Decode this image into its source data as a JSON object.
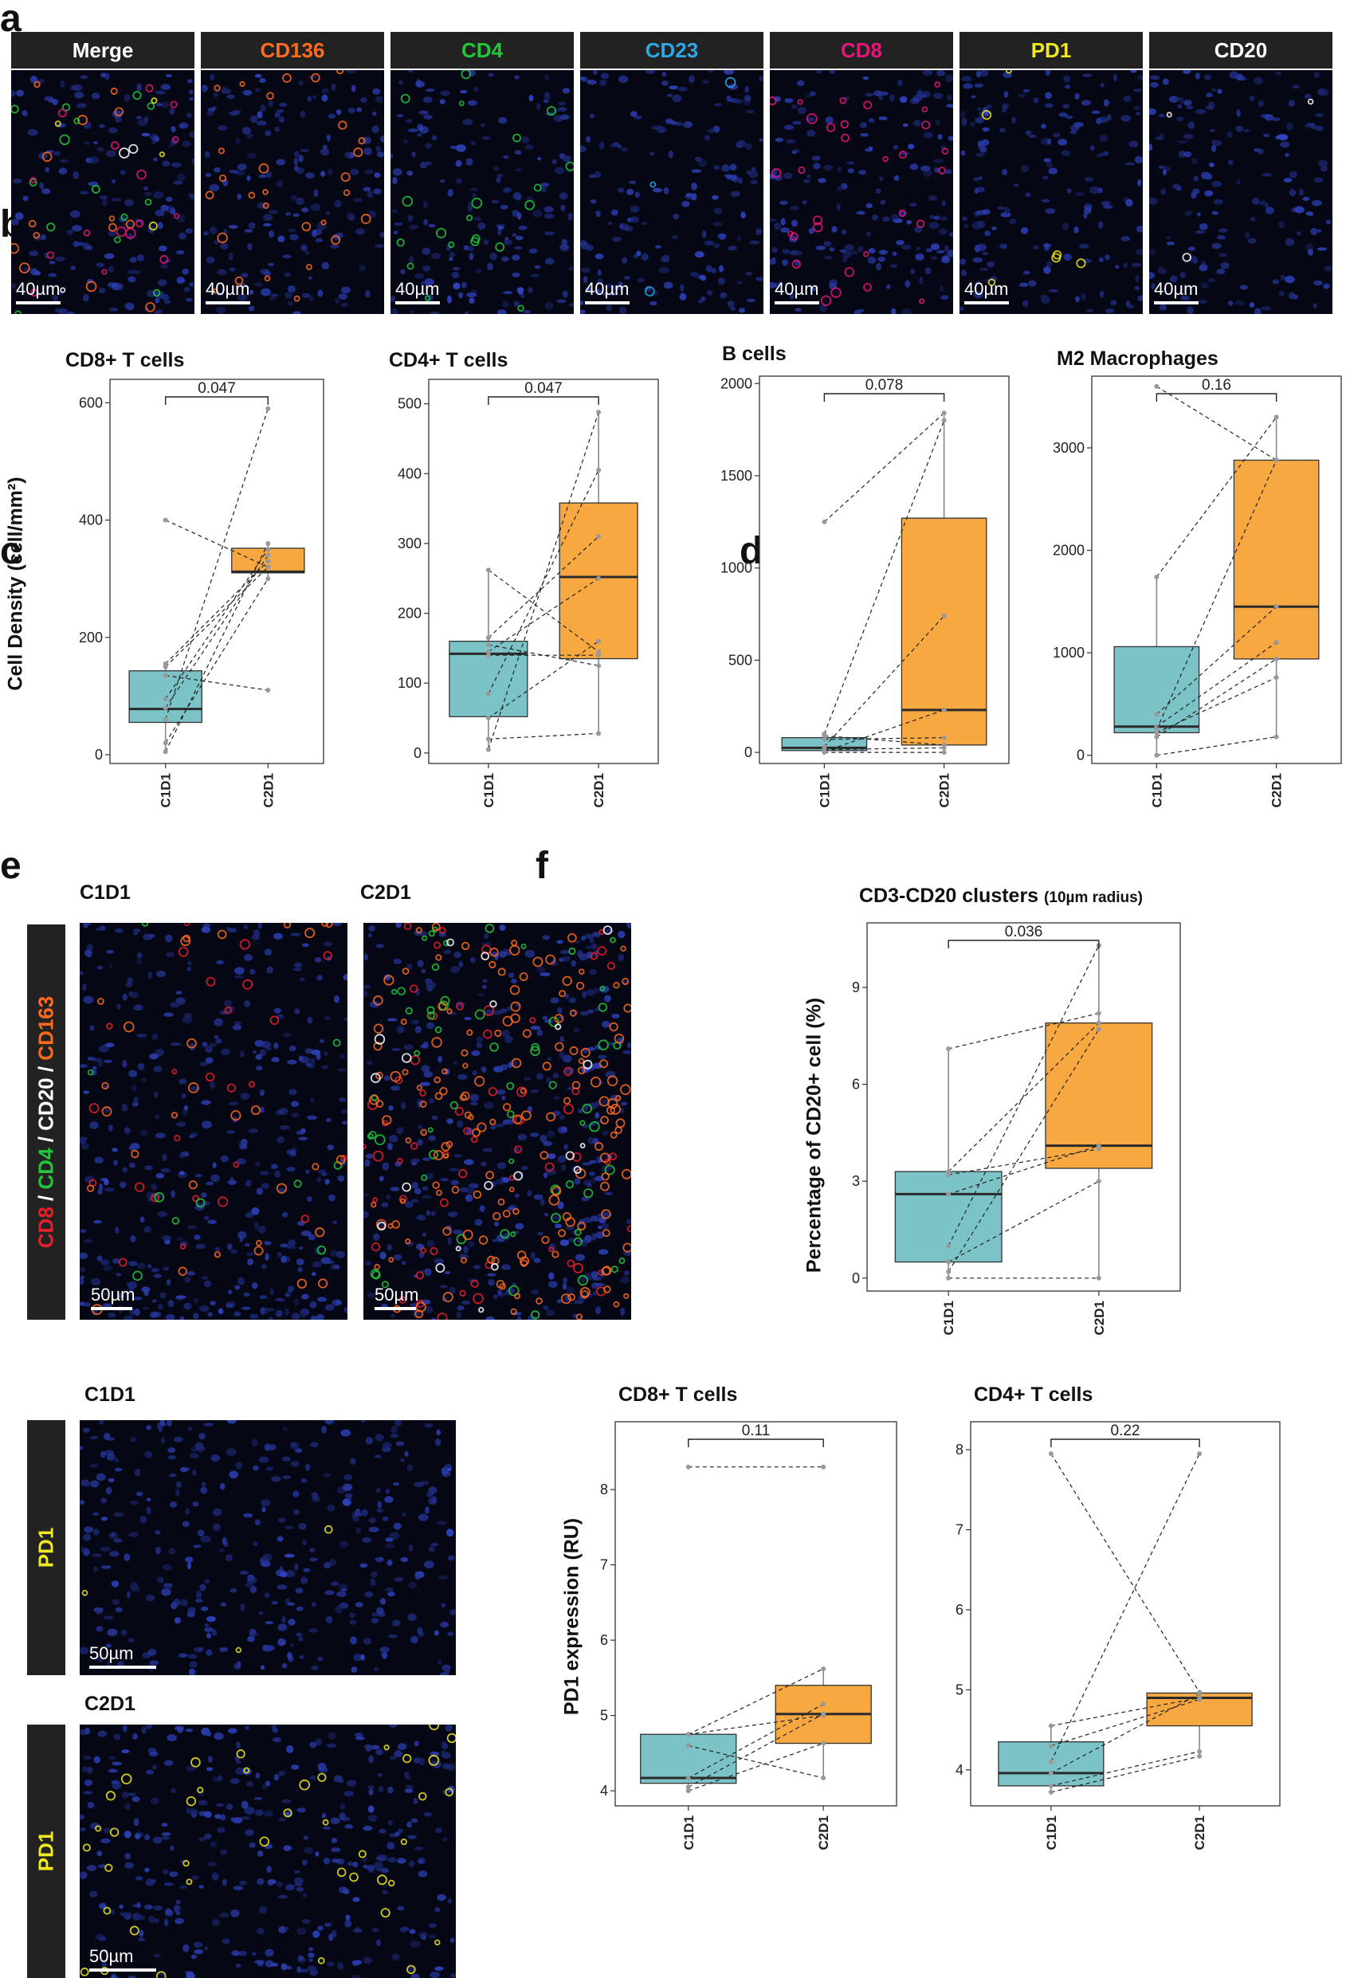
{
  "panels": {
    "a": "a",
    "b": "b",
    "c": "c",
    "d": "d",
    "e": "e",
    "f": "f"
  },
  "panel_a": {
    "channels": [
      {
        "label": "Merge",
        "color": "#ffffff"
      },
      {
        "label": "CD136",
        "color": "#ff6a1f"
      },
      {
        "label": "CD4",
        "color": "#22c83a"
      },
      {
        "label": "CD23",
        "color": "#2aa8e8"
      },
      {
        "label": "CD8",
        "color": "#e6157a"
      },
      {
        "label": "PD1",
        "color": "#f0e820"
      },
      {
        "label": "CD20",
        "color": "#ffffff"
      }
    ],
    "scale": "40µm"
  },
  "panel_c": {
    "conditions": [
      "C1D1",
      "C2D1"
    ],
    "markers": [
      {
        "label": "CD8",
        "color": "#e8202a"
      },
      {
        "label": " / ",
        "color": "#ffffff"
      },
      {
        "label": "CD4",
        "color": "#22c83a"
      },
      {
        "label": " / ",
        "color": "#ffffff"
      },
      {
        "label": "CD20",
        "color": "#ffffff"
      },
      {
        "label": " / ",
        "color": "#ffffff"
      },
      {
        "label": "CD163",
        "color": "#ff6a1f"
      }
    ],
    "scale": "50µm"
  },
  "panel_e": {
    "conditions": [
      "C1D1",
      "C2D1"
    ],
    "marker": {
      "label": "PD1",
      "color": "#f0e820"
    },
    "scale": "50µm"
  },
  "panel_b_ylabel": "Cell Density (cell/mm²)",
  "panel_d_ylabel": "Percentage of CD20+ cell (%)",
  "panel_f_ylabel": "PD1 expression (RU)",
  "chart_data": [
    {
      "id": "b1",
      "type": "box",
      "title": "CD8+ T cells",
      "categories": [
        "C1D1",
        "C2D1"
      ],
      "ylim": [
        -15,
        640
      ],
      "yticks": [
        0,
        200,
        400,
        600
      ],
      "boxes": [
        {
          "q1": 55,
          "median": 78,
          "q3": 143,
          "low": 5,
          "high": 155
        },
        {
          "q1": 310,
          "median": 312,
          "q3": 352,
          "low": 300,
          "high": 360
        }
      ],
      "pvalue": "0.047",
      "pairs": [
        [
          5,
          360
        ],
        [
          20,
          300
        ],
        [
          150,
          320
        ],
        [
          80,
          340
        ],
        [
          400,
          320
        ],
        [
          135,
          110
        ],
        [
          155,
          330
        ],
        [
          60,
          590
        ],
        [
          95,
          350
        ]
      ]
    },
    {
      "id": "b2",
      "type": "box",
      "title": "CD4+ T cells",
      "categories": [
        "C1D1",
        "C2D1"
      ],
      "ylim": [
        -15,
        535
      ],
      "yticks": [
        0,
        100,
        200,
        300,
        400,
        500
      ],
      "boxes": [
        {
          "q1": 52,
          "median": 142,
          "q3": 160,
          "low": 5,
          "high": 262
        },
        {
          "q1": 135,
          "median": 252,
          "q3": 358,
          "low": 28,
          "high": 488
        }
      ],
      "pvalue": "0.047",
      "pairs": [
        [
          262,
          145
        ],
        [
          165,
          310
        ],
        [
          145,
          250
        ],
        [
          85,
          405
        ],
        [
          20,
          28
        ],
        [
          5,
          488
        ],
        [
          50,
          160
        ],
        [
          140,
          140
        ],
        [
          155,
          125
        ]
      ]
    },
    {
      "id": "b3",
      "type": "box",
      "title": "B cells",
      "categories": [
        "C1D1",
        "C2D1"
      ],
      "ylim": [
        -60,
        2040
      ],
      "yticks": [
        0,
        500,
        1000,
        1500,
        2000
      ],
      "boxes": [
        {
          "q1": 10,
          "median": 25,
          "q3": 80,
          "low": 0,
          "high": 100
        },
        {
          "q1": 40,
          "median": 230,
          "q3": 1270,
          "low": 0,
          "high": 1840
        }
      ],
      "pvalue": "0.078",
      "pairs": [
        [
          1250,
          1840
        ],
        [
          100,
          1800
        ],
        [
          30,
          740
        ],
        [
          5,
          230
        ],
        [
          70,
          80
        ],
        [
          15,
          25
        ],
        [
          0,
          0
        ],
        [
          90,
          40
        ]
      ]
    },
    {
      "id": "b4",
      "type": "box",
      "title": "M2 Macrophages",
      "categories": [
        "C1D1",
        "C2D1"
      ],
      "ylim": [
        -80,
        3700
      ],
      "yticks": [
        0,
        1000,
        2000,
        3000
      ],
      "boxes": [
        {
          "q1": 220,
          "median": 280,
          "q3": 1060,
          "low": 0,
          "high": 1740
        },
        {
          "q1": 940,
          "median": 1450,
          "q3": 2880,
          "low": 180,
          "high": 3300
        }
      ],
      "pvalue": "0.16",
      "pairs": [
        [
          3600,
          2880
        ],
        [
          1740,
          3300
        ],
        [
          400,
          1450
        ],
        [
          280,
          1100
        ],
        [
          220,
          760
        ],
        [
          0,
          180
        ],
        [
          250,
          2880
        ],
        [
          180,
          940
        ]
      ]
    },
    {
      "id": "d",
      "type": "box",
      "title": "CD3-CD20 clusters",
      "subtitle": "(10µm radius)",
      "categories": [
        "C1D1",
        "C2D1"
      ],
      "ylim": [
        -0.4,
        11
      ],
      "yticks": [
        0,
        3,
        6,
        9
      ],
      "boxes": [
        {
          "q1": 0.5,
          "median": 2.6,
          "q3": 3.3,
          "low": 0,
          "high": 7.1
        },
        {
          "q1": 3.4,
          "median": 4.1,
          "q3": 7.9,
          "low": 0,
          "high": 10.3
        }
      ],
      "pvalue": "0.036",
      "pairs": [
        [
          7.1,
          8.2
        ],
        [
          3.3,
          7.9
        ],
        [
          1.0,
          10.3
        ],
        [
          2.6,
          4.1
        ],
        [
          0.5,
          3.0
        ],
        [
          0,
          0
        ],
        [
          3.2,
          4.0
        ],
        [
          0.2,
          7.7
        ]
      ]
    },
    {
      "id": "f1",
      "type": "box",
      "title": "CD8+ T cells",
      "categories": [
        "C1D1",
        "C2D1"
      ],
      "ylim": [
        3.8,
        8.9
      ],
      "yticks": [
        4,
        5,
        6,
        7,
        8
      ],
      "boxes": [
        {
          "q1": 4.1,
          "median": 4.17,
          "q3": 4.75,
          "low": 4.0,
          "high": 4.75
        },
        {
          "q1": 4.63,
          "median": 5.02,
          "q3": 5.4,
          "low": 4.17,
          "high": 5.62
        }
      ],
      "pvalue": "0.11",
      "pairs": [
        [
          8.3,
          8.3
        ],
        [
          4.75,
          5.62
        ],
        [
          4.17,
          5.15
        ],
        [
          4.05,
          5.02
        ],
        [
          4.0,
          4.63
        ],
        [
          4.6,
          4.17
        ],
        [
          4.75,
          5.0
        ]
      ]
    },
    {
      "id": "f2",
      "type": "box",
      "title": "CD4+ T cells",
      "categories": [
        "C1D1",
        "C2D1"
      ],
      "ylim": [
        3.55,
        8.35
      ],
      "yticks": [
        4,
        5,
        6,
        7,
        8
      ],
      "boxes": [
        {
          "q1": 3.8,
          "median": 3.96,
          "q3": 4.35,
          "low": 3.72,
          "high": 4.55
        },
        {
          "q1": 4.55,
          "median": 4.9,
          "q3": 4.96,
          "low": 4.17,
          "high": 4.97
        }
      ],
      "pvalue": "0.22",
      "pairs": [
        [
          7.95,
          4.97
        ],
        [
          4.55,
          4.9
        ],
        [
          4.1,
          7.95
        ],
        [
          3.96,
          4.95
        ],
        [
          3.8,
          4.23
        ],
        [
          3.72,
          4.17
        ],
        [
          4.3,
          4.88
        ]
      ]
    }
  ]
}
